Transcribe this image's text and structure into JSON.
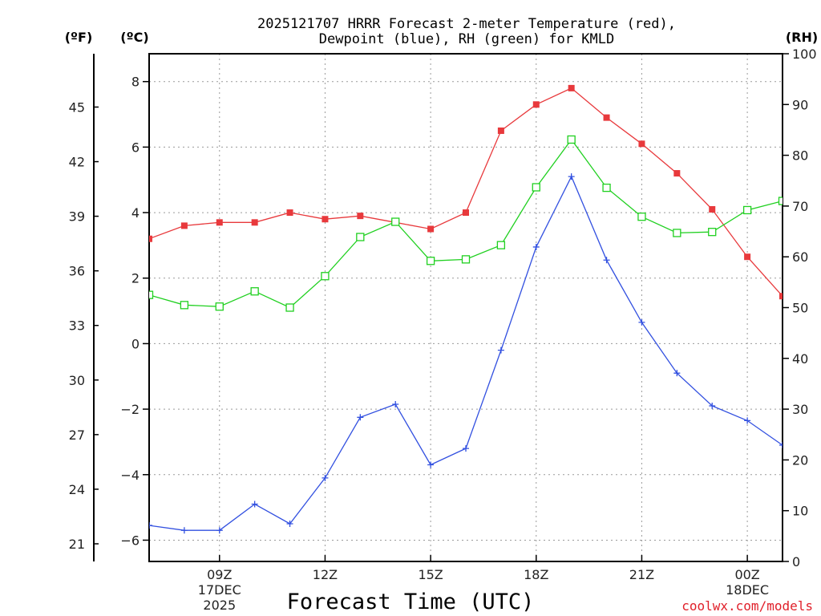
{
  "chart_data": {
    "type": "line",
    "title_line1": "2025121707 HRRR Forecast 2-meter Temperature (red),",
    "title_line2": "Dewpoint (blue), RH (green) for KMLD",
    "xlabel": "Forecast Time (UTC)",
    "credit": "coolwx.com/models",
    "units": {
      "fahrenheit": "(ºF)",
      "celsius": "(ºC)",
      "rh": "(RH)"
    },
    "x_hours": [
      7,
      8,
      9,
      10,
      11,
      12,
      13,
      14,
      15,
      16,
      17,
      18,
      19,
      20,
      21,
      22,
      23,
      24,
      25
    ],
    "xlim": [
      7,
      25
    ],
    "ylim_c": [
      -6.65,
      8.85
    ],
    "ylim_rh": [
      0,
      100
    ],
    "x_ticks": [
      {
        "hour": 9,
        "label": "09Z",
        "sub1": "17DEC",
        "sub2": "2025"
      },
      {
        "hour": 12,
        "label": "12Z",
        "sub1": "",
        "sub2": ""
      },
      {
        "hour": 15,
        "label": "15Z",
        "sub1": "",
        "sub2": ""
      },
      {
        "hour": 18,
        "label": "18Z",
        "sub1": "",
        "sub2": ""
      },
      {
        "hour": 21,
        "label": "21Z",
        "sub1": "",
        "sub2": ""
      },
      {
        "hour": 24,
        "label": "00Z",
        "sub1": "18DEC",
        "sub2": ""
      }
    ],
    "y_ticks_c": [
      {
        "value": 8,
        "label": "8"
      },
      {
        "value": 6,
        "label": "6"
      },
      {
        "value": 4,
        "label": "4"
      },
      {
        "value": 2,
        "label": "2"
      },
      {
        "value": 0,
        "label": "0"
      },
      {
        "value": -2,
        "label": "−2"
      },
      {
        "value": -4,
        "label": "−4"
      },
      {
        "value": -6,
        "label": "−6"
      }
    ],
    "y_ticks_f": [
      {
        "value": 45,
        "label": "45"
      },
      {
        "value": 42,
        "label": "42"
      },
      {
        "value": 39,
        "label": "39"
      },
      {
        "value": 36,
        "label": "36"
      },
      {
        "value": 33,
        "label": "33"
      },
      {
        "value": 30,
        "label": "30"
      },
      {
        "value": 27,
        "label": "27"
      },
      {
        "value": 24,
        "label": "24"
      },
      {
        "value": 21,
        "label": "21"
      }
    ],
    "y_ticks_rh": [
      {
        "value": 100,
        "label": "100"
      },
      {
        "value": 90,
        "label": "90"
      },
      {
        "value": 80,
        "label": "80"
      },
      {
        "value": 70,
        "label": "70"
      },
      {
        "value": 60,
        "label": "60"
      },
      {
        "value": 50,
        "label": "50"
      },
      {
        "value": 40,
        "label": "40"
      },
      {
        "value": 30,
        "label": "30"
      },
      {
        "value": 20,
        "label": "20"
      },
      {
        "value": 10,
        "label": "10"
      },
      {
        "value": 0,
        "label": "0"
      }
    ],
    "series": [
      {
        "name": "Temperature",
        "axis": "c",
        "color": "#e8393c",
        "marker": "filled-square",
        "values": [
          3.2,
          3.6,
          3.7,
          3.7,
          4.0,
          3.8,
          3.9,
          3.7,
          3.5,
          4.0,
          6.5,
          7.3,
          7.8,
          6.9,
          6.1,
          5.2,
          4.1,
          2.65,
          1.45
        ]
      },
      {
        "name": "Dewpoint",
        "axis": "c",
        "color": "#3250e0",
        "marker": "plus",
        "values": [
          -5.55,
          -5.7,
          -5.7,
          -4.9,
          -5.5,
          -4.1,
          -2.25,
          -1.85,
          -3.7,
          -3.2,
          -0.2,
          2.95,
          5.1,
          2.55,
          0.65,
          -0.9,
          -1.9,
          -2.35,
          -3.1
        ]
      },
      {
        "name": "RH",
        "axis": "rh",
        "color": "#20d020",
        "marker": "open-square",
        "values": [
          52.5,
          50.5,
          50.2,
          53.2,
          50.0,
          56.2,
          63.9,
          66.9,
          59.2,
          59.5,
          62.3,
          73.7,
          83.1,
          73.6,
          67.9,
          64.7,
          64.9,
          69.2,
          71.0
        ]
      }
    ]
  }
}
